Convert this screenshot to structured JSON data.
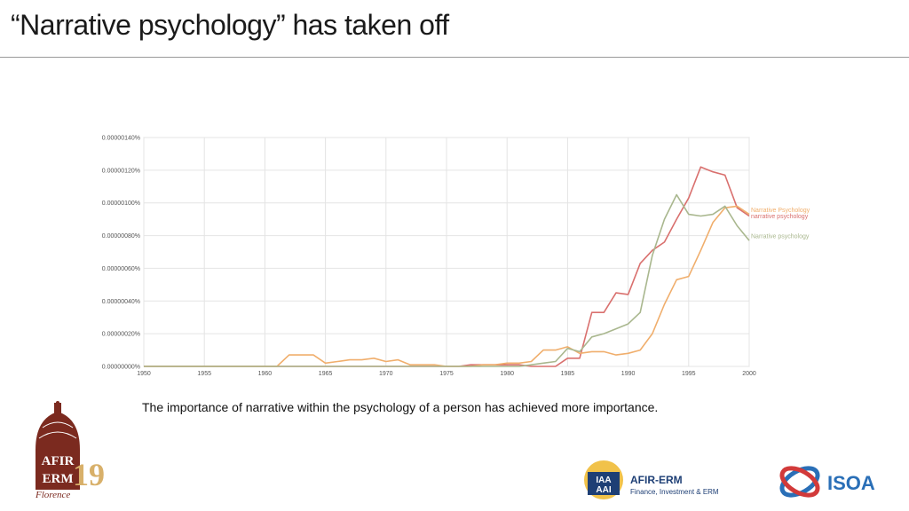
{
  "slide": {
    "title": "“Narrative psychology” has taken off",
    "caption": "The importance of narrative within the psychology of a person has achieved more importance."
  },
  "logos": {
    "afir_word_1": "AFIR",
    "afir_word_2": "ERM",
    "afir_year": "19",
    "afir_city": "Florence",
    "iaa_letters_1": "IAA",
    "iaa_letters_2": "AAI",
    "iaa_title": "AFIR-ERM",
    "iaa_subtitle": "Finance, Investment & ERM",
    "isoa": "ISOA"
  },
  "colors": {
    "series_red": "#d9706e",
    "series_orange": "#f0ae6c",
    "series_green": "#a9b78e",
    "afir_brown": "#7b2a1f",
    "afir_gold": "#d8b06a",
    "iaa_blue": "#1e3f75",
    "isoa_blue": "#2a6fb7",
    "isoa_red": "#d23a3a"
  },
  "chart_data": {
    "type": "line",
    "xlim": [
      1950,
      2000
    ],
    "ylim": [
      0,
      1.4e-06
    ],
    "x_ticks": [
      "1950",
      "1955",
      "1960",
      "1965",
      "1970",
      "1975",
      "1980",
      "1985",
      "1990",
      "1995",
      "2000"
    ],
    "y_ticks": [
      "0.00000000%",
      "0.00000020%",
      "0.00000040%",
      "0.00000060%",
      "0.00000080%",
      "0.00000100%",
      "0.00000120%",
      "0.00000140%"
    ],
    "grid": true,
    "legend": "end-of-line labels",
    "series": [
      {
        "name": "narrative psychology",
        "color": "#d9706e",
        "x": [
          1950,
          1976,
          1977,
          1978,
          1979,
          1980,
          1981,
          1982,
          1983,
          1984,
          1985,
          1986,
          1987,
          1988,
          1989,
          1990,
          1991,
          1992,
          1993,
          1994,
          1995,
          1996,
          1997,
          1998,
          1999,
          2000
        ],
        "y": [
          0,
          0,
          1e-08,
          1e-08,
          1e-08,
          1e-08,
          1e-08,
          0,
          0,
          0,
          5e-08,
          5e-08,
          3.3e-07,
          3.3e-07,
          4.5e-07,
          4.4e-07,
          6.3e-07,
          7.1e-07,
          7.6e-07,
          9e-07,
          1.03e-06,
          1.22e-06,
          1.19e-06,
          1.17e-06,
          9.7e-07,
          9.2e-07
        ]
      },
      {
        "name": "Narrative Psychology",
        "color": "#f0ae6c",
        "x": [
          1950,
          1961,
          1962,
          1963,
          1964,
          1965,
          1966,
          1967,
          1968,
          1969,
          1970,
          1971,
          1972,
          1973,
          1974,
          1975,
          1976,
          1977,
          1978,
          1979,
          1980,
          1981,
          1982,
          1983,
          1984,
          1985,
          1986,
          1987,
          1988,
          1989,
          1990,
          1991,
          1992,
          1993,
          1994,
          1995,
          1996,
          1997,
          1998,
          1999,
          2000
        ],
        "y": [
          0,
          0,
          7e-08,
          7e-08,
          7e-08,
          2e-08,
          3e-08,
          4e-08,
          4e-08,
          5e-08,
          3e-08,
          4e-08,
          1e-08,
          1e-08,
          1e-08,
          0,
          0,
          0,
          1e-08,
          1e-08,
          2e-08,
          2e-08,
          3e-08,
          1e-07,
          1e-07,
          1.2e-07,
          8e-08,
          9e-08,
          9e-08,
          7e-08,
          8e-08,
          1e-07,
          2e-07,
          3.8e-07,
          5.3e-07,
          5.5e-07,
          7.1e-07,
          8.8e-07,
          9.7e-07,
          9.8e-07,
          9.3e-07
        ]
      },
      {
        "name": "Narrative psychology",
        "color": "#a9b78e",
        "x": [
          1950,
          1980,
          1981,
          1982,
          1983,
          1984,
          1985,
          1986,
          1987,
          1988,
          1989,
          1990,
          1991,
          1992,
          1993,
          1994,
          1995,
          1996,
          1997,
          1998,
          1999,
          2000
        ],
        "y": [
          0,
          0,
          0,
          1e-08,
          2e-08,
          3e-08,
          1.1e-07,
          9e-08,
          1.8e-07,
          2e-07,
          2.3e-07,
          2.6e-07,
          3.3e-07,
          6.8e-07,
          9e-07,
          1.05e-06,
          9.3e-07,
          9.2e-07,
          9.3e-07,
          9.8e-07,
          8.6e-07,
          7.7e-07
        ]
      }
    ]
  }
}
